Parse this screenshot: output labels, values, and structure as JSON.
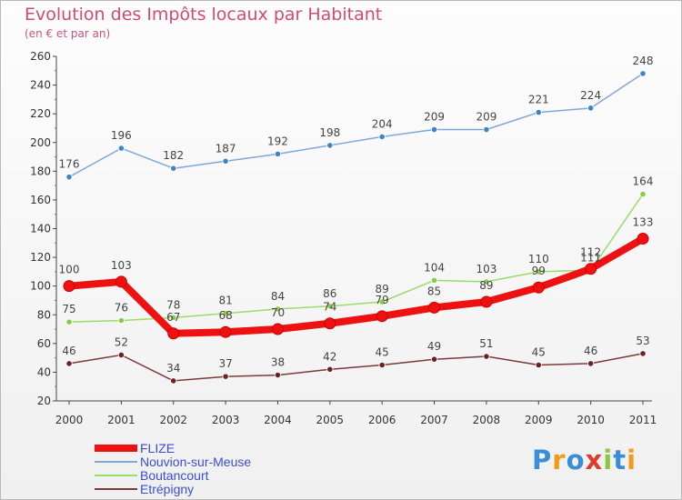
{
  "title": "Evolution des Impôts locaux par Habitant",
  "subtitle": "(en € et par an)",
  "logo": {
    "letters": [
      "P",
      "r",
      "o",
      "x",
      "i",
      "t",
      "i"
    ],
    "colors": [
      "#3a8ed8",
      "#f29a1a",
      "#3a8ed8",
      "#e03a2a",
      "#8cc63f",
      "#3a8ed8",
      "#f29a1a"
    ]
  },
  "chart_data": {
    "type": "line",
    "title": "Evolution des Impôts locaux par Habitant",
    "subtitle": "(en € et par an)",
    "xlabel": "",
    "ylabel": "",
    "x": [
      "2000",
      "2001",
      "2002",
      "2003",
      "2004",
      "2005",
      "2006",
      "2007",
      "2008",
      "2009",
      "2010",
      "2011"
    ],
    "ylim": [
      20,
      260
    ],
    "yticks": [
      20,
      40,
      60,
      80,
      100,
      120,
      140,
      160,
      180,
      200,
      220,
      240,
      260
    ],
    "grid": false,
    "legend_position": "bottom-left",
    "series": [
      {
        "name": "FLIZE",
        "color": "#ee1111",
        "values": [
          100,
          103,
          67,
          68,
          70,
          74,
          79,
          85,
          89,
          99,
          112,
          133
        ],
        "labels": [
          "100",
          "103",
          "67",
          "68",
          "70",
          "74",
          "79",
          "85",
          "89",
          "99",
          "112",
          "133"
        ]
      },
      {
        "name": "Nouvion-sur-Meuse",
        "color": "#7fa8d8",
        "marker_color": "#3d85c6",
        "values": [
          176,
          196,
          182,
          187,
          192,
          198,
          204,
          209,
          209,
          221,
          224,
          248
        ],
        "labels": [
          "176",
          "196",
          "182",
          "187",
          "192",
          "198",
          "204",
          "209",
          "209",
          "221",
          "224",
          "248"
        ]
      },
      {
        "name": "Boutancourt",
        "color": "#99dd66",
        "marker_color": "#88cc44",
        "values": [
          75,
          76,
          78,
          81,
          84,
          86,
          89,
          104,
          103,
          110,
          111,
          164
        ],
        "labels": [
          "75",
          "76",
          "78",
          "81",
          "84",
          "86",
          "89",
          "104",
          "103",
          "110",
          "111",
          "164"
        ]
      },
      {
        "name": "Etrépigny",
        "color": "#7a3b3b",
        "marker_color": "#6b2222",
        "values": [
          46,
          52,
          34,
          37,
          38,
          42,
          45,
          49,
          51,
          45,
          46,
          53
        ],
        "labels": [
          "46",
          "52",
          "34",
          "37",
          "38",
          "42",
          "45",
          "49",
          "51",
          "45",
          "46",
          "53"
        ]
      }
    ]
  }
}
